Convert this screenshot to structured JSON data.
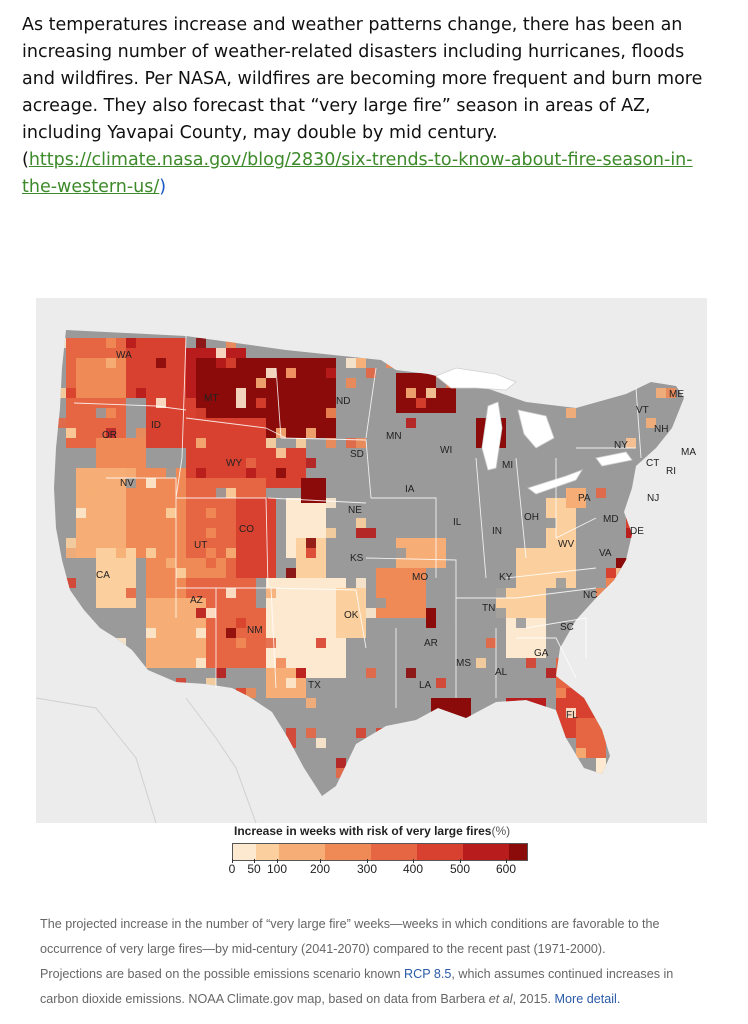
{
  "intro": {
    "text": "As temperatures increase and weather patterns change, there has been an increasing number of weather-related disasters including hurricanes, floods and wildfires.  Per NASA, wildfires are becoming more frequent and burn more acreage.  They also forecast that “very large fire” season in areas of AZ, including Yavapai County, may double by mid century.",
    "open_paren": "(",
    "link": "https://climate.nasa.gov/blog/2830/six-trends-to-know-about-fire-season-in-the-western-us/",
    "close_paren": ")"
  },
  "map": {
    "colors": {
      "c0": "#fde9cf",
      "c50": "#fbd09e",
      "c100": "#f6ae76",
      "c200": "#ef8a57",
      "c300": "#e66644",
      "c400": "#d8412f",
      "c500": "#b81c1c",
      "c600": "#8b0a0a",
      "nodata": "#9a9a9a",
      "background": "#ececec",
      "water": "#ffffff"
    },
    "state_labels": [
      "WA",
      "MT",
      "ND",
      "MN",
      "ME",
      "VT",
      "NH",
      "MA",
      "RI",
      "CT",
      "NY",
      "NJ",
      "PA",
      "DE",
      "MD",
      "OR",
      "ID",
      "WY",
      "SD",
      "WI",
      "MI",
      "OH",
      "IN",
      "IL",
      "IA",
      "NE",
      "NV",
      "UT",
      "CO",
      "KS",
      "MO",
      "KY",
      "WV",
      "VA",
      "NC",
      "TN",
      "AR",
      "OK",
      "CA",
      "AZ",
      "NM",
      "TX",
      "LA",
      "MS",
      "AL",
      "GA",
      "SC",
      "FL"
    ]
  },
  "legend": {
    "title": "Increase in weeks with risk of very large fires",
    "unit": "(%)",
    "ticks": [
      "0",
      "50",
      "100",
      "200",
      "300",
      "400",
      "500",
      "600"
    ]
  },
  "caption": {
    "line1": "The projected increase in the number of “very large fire” weeks—weeks in which conditions are favorable to the",
    "line2": "occurrence of very large fires—by mid-century (2041-2070) compared to the recent past (1971-2000).",
    "line3a": "Projections are based on the possible emissions scenario known ",
    "rcp": "RCP 8.5",
    "line3b": ", which assumes continued increases in",
    "line4a": "carbon dioxide emissions. NOAA Climate.gov map, based on data from Barbera ",
    "etal": "et al",
    "line4b": ", 2015.  ",
    "more": "More detail."
  }
}
